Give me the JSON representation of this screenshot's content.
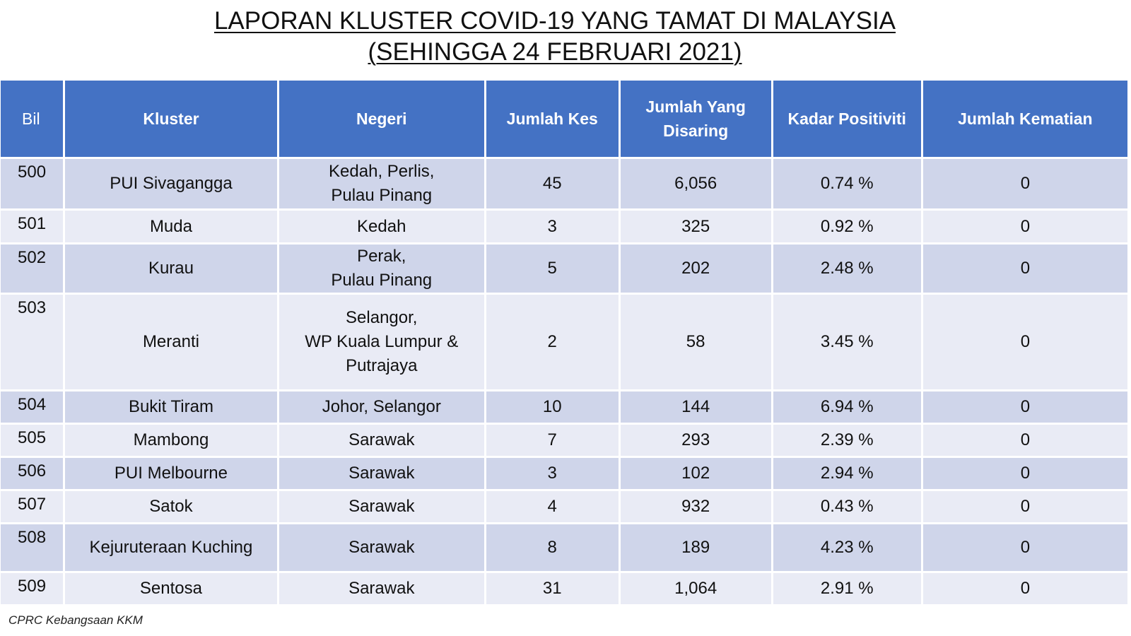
{
  "title": {
    "line1": "LAPORAN KLUSTER COVID-19 YANG TAMAT DI MALAYSIA",
    "line2": "(SEHINGGA 24 FEBRUARI 2021)"
  },
  "table": {
    "headers": {
      "bil": "Bil",
      "kluster": "Kluster",
      "negeri": "Negeri",
      "jumlah_kes": "Jumlah Kes",
      "jumlah_disaring_1": "Jumlah Yang",
      "jumlah_disaring_2": "Disaring",
      "kadar_positiviti": "Kadar Positiviti",
      "jumlah_kematian": "Jumlah Kematian"
    },
    "rows": [
      {
        "bil": "500",
        "kluster": "PUI Sivagangga",
        "negeri": [
          "Kedah, Perlis,",
          "Pulau Pinang"
        ],
        "kes": "45",
        "disaring": "6,056",
        "positiviti": "0.74 %",
        "kematian": "0"
      },
      {
        "bil": "501",
        "kluster": "Muda",
        "negeri": [
          "Kedah"
        ],
        "kes": "3",
        "disaring": "325",
        "positiviti": "0.92 %",
        "kematian": "0"
      },
      {
        "bil": "502",
        "kluster": "Kurau",
        "negeri": [
          "Perak,",
          "Pulau Pinang"
        ],
        "kes": "5",
        "disaring": "202",
        "positiviti": "2.48 %",
        "kematian": "0"
      },
      {
        "bil": "503",
        "kluster": "Meranti",
        "negeri": [
          "Selangor,",
          "WP Kuala Lumpur &",
          "Putrajaya"
        ],
        "kes": "2",
        "disaring": "58",
        "positiviti": "3.45 %",
        "kematian": "0"
      },
      {
        "bil": "504",
        "kluster": "Bukit Tiram",
        "negeri": [
          "Johor, Selangor"
        ],
        "kes": "10",
        "disaring": "144",
        "positiviti": "6.94 %",
        "kematian": "0"
      },
      {
        "bil": "505",
        "kluster": "Mambong",
        "negeri": [
          "Sarawak"
        ],
        "kes": "7",
        "disaring": "293",
        "positiviti": "2.39 %",
        "kematian": "0"
      },
      {
        "bil": "506",
        "kluster": "PUI Melbourne",
        "negeri": [
          "Sarawak"
        ],
        "kes": "3",
        "disaring": "102",
        "positiviti": "2.94 %",
        "kematian": "0"
      },
      {
        "bil": "507",
        "kluster": "Satok",
        "negeri": [
          "Sarawak"
        ],
        "kes": "4",
        "disaring": "932",
        "positiviti": "0.43 %",
        "kematian": "0"
      },
      {
        "bil": "508",
        "kluster": "Kejuruteraan Kuching",
        "negeri": [
          "Sarawak"
        ],
        "kes": "8",
        "disaring": "189",
        "positiviti": "4.23 %",
        "kematian": "0"
      },
      {
        "bil": "509",
        "kluster": "Sentosa",
        "negeri": [
          "Sarawak"
        ],
        "kes": "31",
        "disaring": "1,064",
        "positiviti": "2.91 %",
        "kematian": "0"
      }
    ]
  },
  "footer": {
    "source": "CPRC Kebangsaan KKM"
  },
  "colors": {
    "header_bg": "#4472c4",
    "row_dark": "#cfd5ea",
    "row_light": "#e9ebf5"
  }
}
